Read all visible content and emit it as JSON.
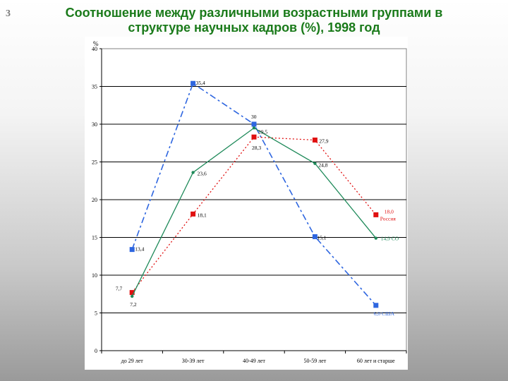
{
  "slide_number": "3",
  "title_line1": "Соотношение между различными возрастными группами в",
  "title_line2": "структуре научных кадров (%), 1998 год",
  "chart_data": {
    "type": "line",
    "ylabel": "%",
    "ylim": [
      0,
      40
    ],
    "yticks": [
      0,
      5,
      10,
      15,
      20,
      25,
      30,
      35,
      40
    ],
    "grid": true,
    "categories": [
      "до 29 лет",
      "30-39 лет",
      "40-49 лет",
      "50-59 лет",
      "60 лет и старше"
    ],
    "series": [
      {
        "color": "#2e66e0",
        "dash": "9,4,3,4",
        "marker": "square",
        "values": [
          13.4,
          35.4,
          30,
          15.1,
          6.0
        ],
        "labels": [
          "13,4",
          "35,4",
          "30",
          "15,1",
          "6,0 США"
        ],
        "label_color": "#000000",
        "end_label_color": "#2e66e0"
      },
      {
        "color": "#e01010",
        "dash": "2,3",
        "marker": "square",
        "values": [
          7.7,
          18.1,
          28.3,
          27.9,
          18.0
        ],
        "labels": [
          "7,7",
          "18,1",
          "28,3",
          "27,9",
          "18,0"
        ],
        "end_label_line2": "Россия",
        "label_color": "#000000",
        "end_label_color": "#e01010"
      },
      {
        "color": "#1f8a5a",
        "dash": "",
        "marker": "dot",
        "values": [
          7.2,
          23.6,
          29.5,
          24.8,
          14.9
        ],
        "labels": [
          "7,2",
          "23,6",
          "29,5",
          "24,8",
          "14,9 СО"
        ],
        "label_color": "#000000",
        "end_label_color": "#1f8a5a"
      }
    ]
  }
}
